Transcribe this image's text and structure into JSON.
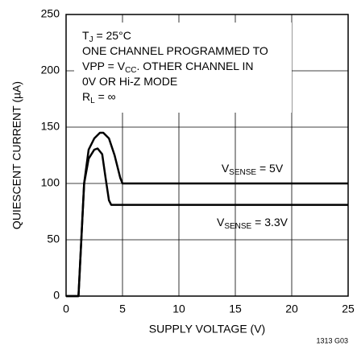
{
  "chart_data": {
    "type": "line",
    "xlabel": "SUPPLY VOLTAGE (V)",
    "ylabel": "QUIESCENT CURRENT (µA)",
    "annotations": [
      [
        "T",
        "J",
        " = 25°C"
      ],
      [
        "ONE CHANNEL PROGRAMMED TO"
      ],
      [
        "VPP = V",
        "CC",
        ". OTHER CHANNEL IN"
      ],
      [
        "0V OR Hi-Z MODE"
      ],
      [
        "R",
        "L",
        " = ∞"
      ]
    ],
    "footnote": "1313 G03",
    "xlim": [
      0,
      25
    ],
    "xticks": [
      0,
      5,
      10,
      15,
      20,
      25
    ],
    "ylim": [
      0,
      250
    ],
    "yticks": [
      0,
      50,
      100,
      150,
      200,
      250
    ],
    "grid": true,
    "series": [
      {
        "label": [
          "V",
          "SENSE",
          " = 5V"
        ],
        "color": "#000000",
        "x": [
          0,
          1.1,
          1.3,
          1.6,
          2,
          2.5,
          3,
          3.3,
          3.8,
          4.3,
          4.8,
          5,
          6,
          25
        ],
        "values": [
          0,
          0,
          40,
          100,
          130,
          140,
          145,
          145,
          140,
          125,
          105,
          100,
          100,
          100
        ]
      },
      {
        "label": [
          "V",
          "SENSE",
          " = 3.3V"
        ],
        "color": "#000000",
        "x": [
          0,
          1.1,
          1.3,
          1.6,
          2,
          2.5,
          2.8,
          3.2,
          3.5,
          3.8,
          4,
          25
        ],
        "values": [
          0,
          0,
          40,
          100,
          122,
          130,
          131,
          126,
          105,
          85,
          81,
          81
        ]
      }
    ]
  }
}
